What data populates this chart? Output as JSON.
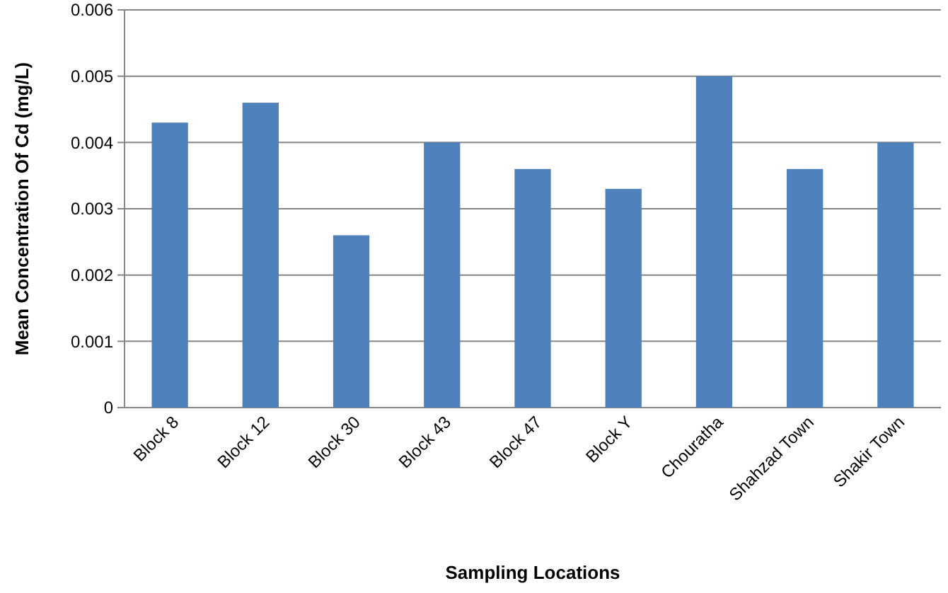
{
  "chart_data": {
    "type": "bar",
    "xlabel": "Sampling Locations",
    "ylabel": "Mean Concentration Of Cd (mg/L)",
    "categories": [
      "Block 8",
      "Block 12",
      "Block 30",
      "Block 43",
      "Block 47",
      "Block Y",
      "Chouratha",
      "Shahzad Town",
      "Shakir Town"
    ],
    "values": [
      0.0043,
      0.0046,
      0.0026,
      0.004,
      0.0036,
      0.0033,
      0.005,
      0.0036,
      0.004
    ],
    "color": "#4f81bd",
    "ylim": [
      0,
      0.006
    ],
    "yticks": [
      0,
      0.001,
      0.002,
      0.003,
      0.004,
      0.005,
      0.006
    ],
    "grid": "y"
  }
}
